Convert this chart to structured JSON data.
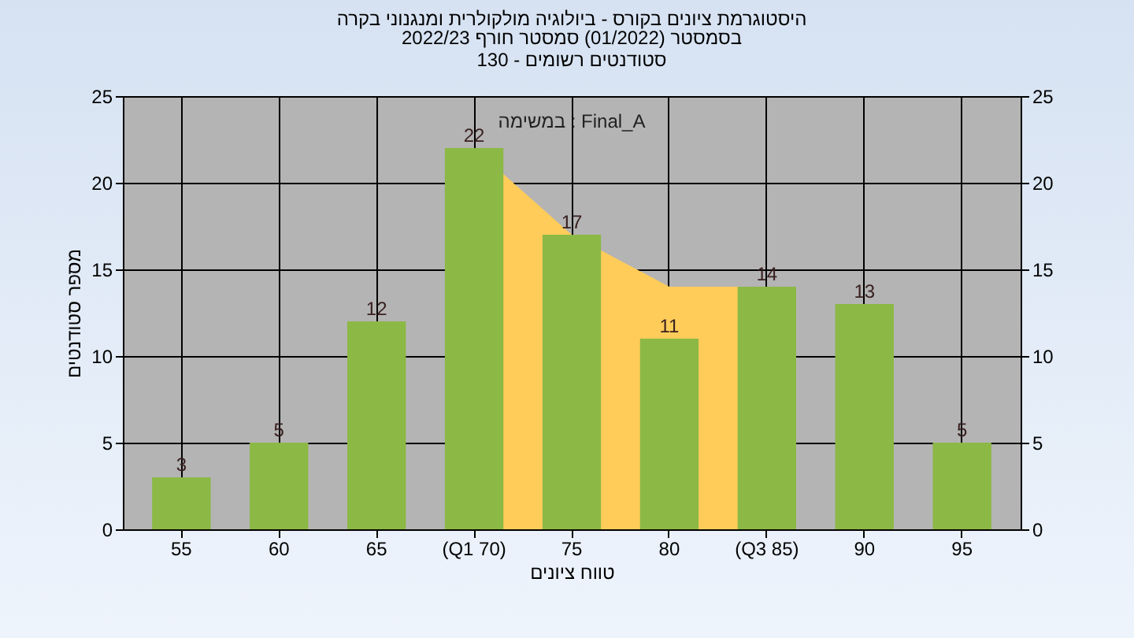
{
  "chart_data": {
    "type": "bar",
    "title": "היסטוגרמת ציונים בקורס - ביולוגיה מולקולרית ומנגנוני בקרה",
    "subtitle": "בסמסטר  (01/2022)  סמסטר חורף 2022/23\nסטודנטים רשומים - 130",
    "xlabel": "טווח ציונים",
    "ylabel": "מספר סטודנטים",
    "annotations": [
      "במשימה : Final_A"
    ],
    "categories": [
      "55",
      "60",
      "65",
      "(Q1 70)",
      "75",
      "80",
      "(Q3 85)",
      "90",
      "95"
    ],
    "series": [
      {
        "type": "area",
        "color": "#ffcc5a",
        "x": [
          "(Q1 70)",
          "75",
          "80",
          "(Q3 85)"
        ],
        "values": [
          22,
          17,
          14,
          14
        ]
      },
      {
        "color": "#8cb845",
        "values": [
          3,
          5,
          12,
          22,
          17,
          11,
          14,
          13,
          5
        ],
        "value_labels": [
          "3",
          "5",
          "12",
          "22",
          "17",
          "11",
          "14",
          "13",
          "5"
        ]
      }
    ],
    "ylim": [
      0,
      25
    ],
    "yticks": [
      0,
      5,
      10,
      15,
      20,
      25
    ],
    "y2lim": [
      0,
      25
    ],
    "y2ticks": [
      0,
      5,
      10,
      15,
      20,
      25
    ],
    "grid": true
  }
}
